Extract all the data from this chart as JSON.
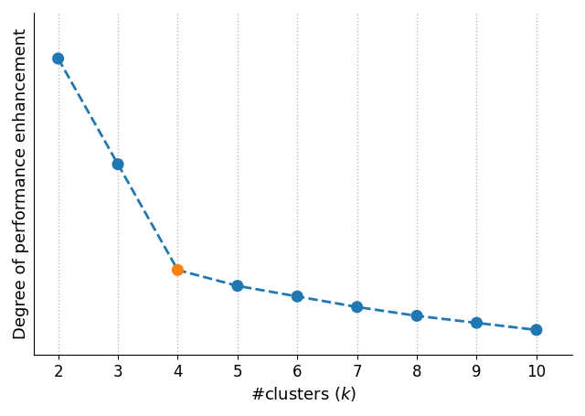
{
  "x": [
    2,
    3,
    4,
    5,
    6,
    7,
    8,
    9,
    10
  ],
  "y": [
    0.92,
    0.62,
    0.32,
    0.275,
    0.245,
    0.215,
    0.19,
    0.17,
    0.15
  ],
  "special_index": 2,
  "point_color_default": "#1f77b4",
  "point_color_special": "#ff7f0e",
  "line_color": "#1f77b4",
  "line_style": "--",
  "line_width": 2.0,
  "marker_size": 9,
  "xlabel": "#clusters ($k$)",
  "ylabel": "Degree of performance enhancement",
  "xlabel_fontsize": 13,
  "ylabel_fontsize": 13,
  "tick_fontsize": 12,
  "grid_color": "#bbbbbb",
  "grid_linestyle": ":",
  "grid_linewidth": 1.0,
  "xticks": [
    2,
    3,
    4,
    5,
    6,
    7,
    8,
    9,
    10
  ],
  "xlim": [
    1.6,
    10.6
  ],
  "ylim": [
    0.08,
    1.05
  ],
  "background_color": "#ffffff"
}
